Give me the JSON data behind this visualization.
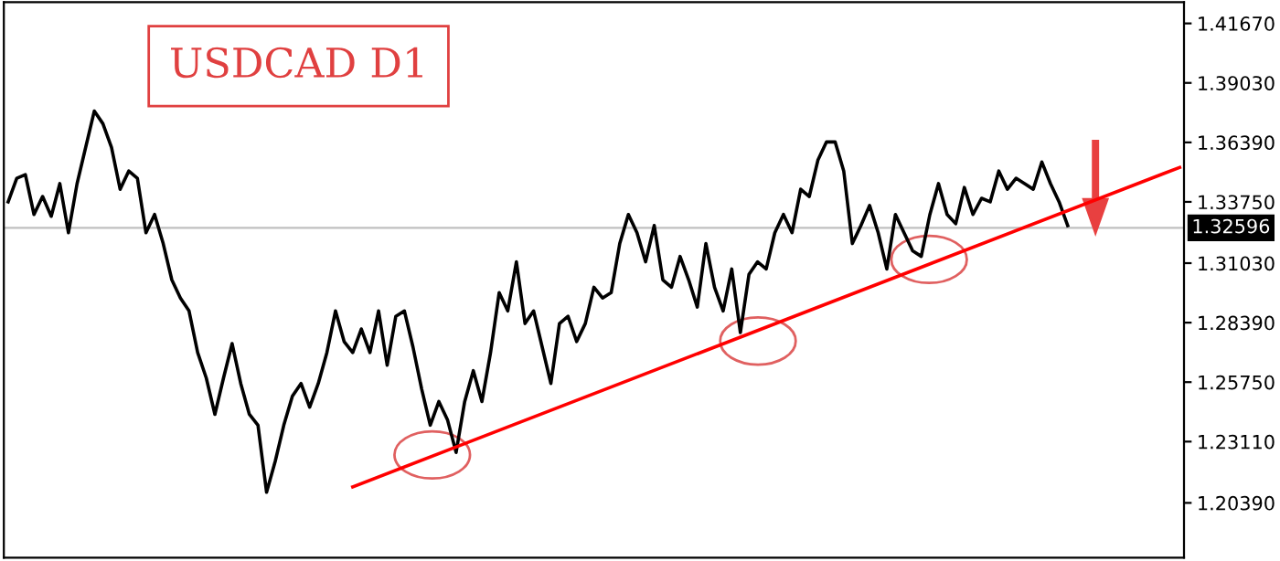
{
  "chart_data": {
    "type": "line",
    "title": "USDCAD D1",
    "categories": [
      null,
      null,
      null,
      null,
      null,
      null,
      null,
      null,
      null,
      null,
      null,
      null,
      null,
      null,
      null,
      null,
      null,
      null,
      null,
      null,
      null,
      null,
      null,
      null,
      null,
      null,
      null,
      null,
      null,
      null,
      null,
      null,
      null,
      null,
      null,
      null,
      null,
      null,
      null,
      null,
      null,
      null,
      null,
      null,
      null,
      null,
      null,
      null,
      null,
      null,
      null,
      null,
      null,
      null,
      null,
      null,
      null,
      null,
      null,
      null,
      null,
      null,
      null,
      null,
      null,
      null,
      null,
      null,
      null,
      null,
      null,
      null,
      null,
      null,
      null,
      null,
      null,
      null,
      null,
      null,
      null,
      null,
      null,
      null,
      null,
      null,
      null,
      null,
      null,
      null,
      null,
      null,
      null,
      null,
      null,
      null,
      null,
      null,
      null,
      null,
      null,
      null,
      null,
      null,
      null,
      null,
      null,
      null,
      null,
      null,
      null,
      null,
      null,
      null,
      null,
      null,
      null,
      null,
      null,
      null,
      null,
      null,
      null,
      null,
      null,
      null,
      null,
      null,
      null,
      null,
      null,
      null,
      null,
      null,
      null,
      null,
      null
    ],
    "series": [
      {
        "color": "#000000",
        "values": [
          1.3375,
          1.348,
          1.3496,
          1.3319,
          1.3399,
          1.3311,
          1.3456,
          1.3238,
          1.3456,
          1.3617,
          1.3778,
          1.3722,
          1.3617,
          1.3431,
          1.3512,
          1.348,
          1.3238,
          1.3319,
          1.319,
          1.3029,
          1.2948,
          1.2891,
          1.2706,
          1.2593,
          1.2432,
          1.2593,
          1.2746,
          1.2569,
          1.2432,
          1.2384,
          1.2086,
          1.2223,
          1.2384,
          1.2513,
          1.2569,
          1.2464,
          1.2569,
          1.2706,
          1.2891,
          1.2755,
          1.2706,
          1.2811,
          1.2706,
          1.2891,
          1.265,
          1.2867,
          1.2891,
          1.273,
          1.2545,
          1.2384,
          1.2489,
          1.2408,
          1.2263,
          1.2489,
          1.2626,
          1.2489,
          1.2706,
          1.2972,
          1.2891,
          1.3109,
          1.2835,
          1.2891,
          1.273,
          1.2569,
          1.2835,
          1.2867,
          1.2755,
          1.2835,
          1.2996,
          1.2948,
          1.2972,
          1.319,
          1.3319,
          1.3238,
          1.3109,
          1.327,
          1.3029,
          1.2996,
          1.3133,
          1.3029,
          1.2908,
          1.319,
          1.2996,
          1.2891,
          1.3077,
          1.2795,
          1.3053,
          1.3109,
          1.3077,
          1.3238,
          1.3319,
          1.3238,
          1.3431,
          1.3399,
          1.356,
          1.3641,
          1.3641,
          1.3512,
          1.319,
          1.327,
          1.3359,
          1.3238,
          1.3077,
          1.3319,
          1.3238,
          1.3158,
          1.3133,
          1.3319,
          1.3456,
          1.3319,
          1.3278,
          1.3439,
          1.3319,
          1.3391,
          1.3375,
          1.3512,
          1.3431,
          1.348,
          1.3456,
          1.3431,
          1.3552,
          1.3456,
          1.3375,
          1.327,
          null,
          null,
          null,
          null,
          null,
          null,
          null,
          null,
          null,
          null,
          null,
          null,
          null
        ]
      },
      {
        "color": "#ff0000",
        "values": [
          null,
          null,
          null,
          null,
          null,
          null,
          null,
          null,
          null,
          null,
          null,
          null,
          null,
          null,
          null,
          null,
          null,
          null,
          null,
          null,
          null,
          null,
          null,
          null,
          null,
          null,
          null,
          null,
          null,
          null,
          null,
          null,
          null,
          null,
          null,
          null,
          null,
          null,
          null,
          null,
          1.211,
          null,
          null,
          null,
          null,
          null,
          null,
          null,
          null,
          null,
          null,
          null,
          null,
          null,
          null,
          null,
          null,
          null,
          null,
          null,
          null,
          null,
          null,
          null,
          null,
          null,
          null,
          null,
          null,
          null,
          null,
          null,
          null,
          null,
          null,
          null,
          null,
          null,
          null,
          null,
          null,
          null,
          null,
          null,
          null,
          null,
          null,
          null,
          null,
          null,
          null,
          null,
          null,
          null,
          null,
          null,
          null,
          null,
          null,
          null,
          null,
          null,
          null,
          null,
          null,
          null,
          null,
          null,
          null,
          null,
          null,
          null,
          null,
          null,
          null,
          null,
          null,
          null,
          null,
          null,
          null,
          null,
          null,
          null,
          null,
          null,
          null,
          null,
          null,
          null,
          null,
          null,
          null,
          null,
          null,
          null,
          1.3528
        ]
      }
    ],
    "ylim": [
      1.1796,
      1.4261
    ],
    "yticks": [
      {
        "value": 1.2039,
        "label": "1.20390"
      },
      {
        "value": 1.2311,
        "label": "1.23110"
      },
      {
        "value": 1.2575,
        "label": "1.25750"
      },
      {
        "value": 1.2839,
        "label": "1.28390"
      },
      {
        "value": 1.3103,
        "label": "1.31030"
      },
      {
        "value": 1.3375,
        "label": "1.33750"
      },
      {
        "value": 1.3639,
        "label": "1.36390"
      },
      {
        "value": 1.3903,
        "label": "1.39030"
      },
      {
        "value": 1.4167,
        "label": "1.41670"
      }
    ],
    "ref_lines": [
      {
        "axis": "y",
        "value": 1.32596,
        "label": "1.32596",
        "color": "#c0c0c0"
      }
    ],
    "tick_labels": "y"
  }
}
